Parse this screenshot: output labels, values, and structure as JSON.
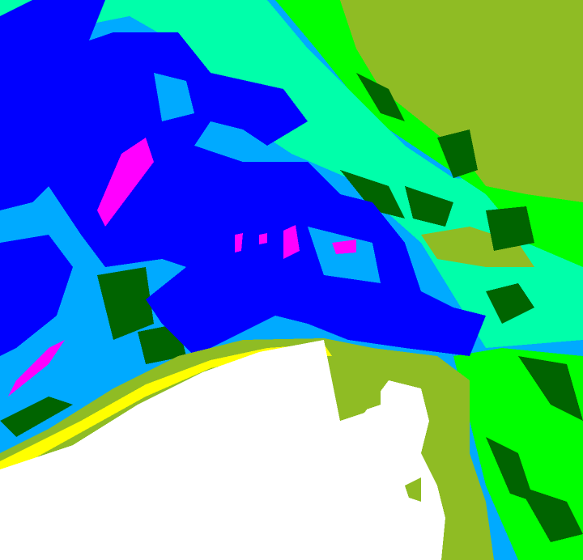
{
  "map": {
    "palette": {
      "magenta": "#ff00ff",
      "blue": "#0000ff",
      "light_blue": "#00aaff",
      "aqua": "#00ffaa",
      "green": "#00ff00",
      "dark_green": "#006400",
      "olive": "#8fbc24",
      "yellow": "#ffff00",
      "no_data": "#ffffff"
    }
  }
}
